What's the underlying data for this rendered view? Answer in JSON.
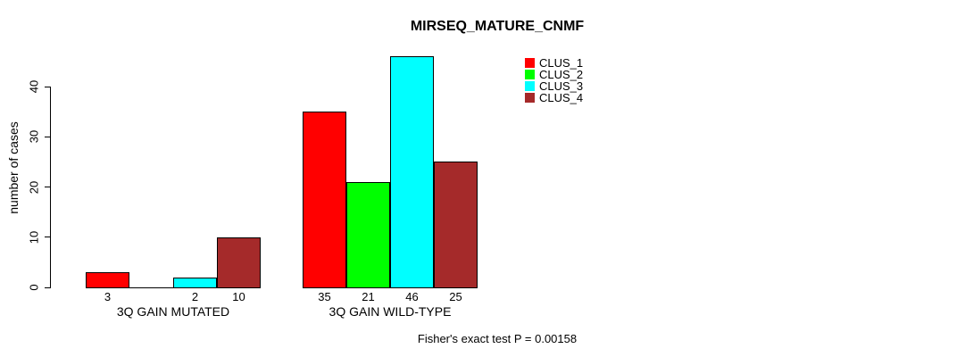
{
  "chart_data": {
    "type": "bar",
    "title": "MIRSEQ_MATURE_CNMF",
    "ylabel": "number of cases",
    "xlabel": "",
    "groups": [
      {
        "label": "3Q GAIN MUTATED",
        "values": [
          3,
          0,
          2,
          10
        ],
        "bar_labels": [
          "3",
          "",
          "2",
          "10"
        ]
      },
      {
        "label": "3Q GAIN WILD-TYPE",
        "values": [
          35,
          21,
          46,
          25
        ],
        "bar_labels": [
          "35",
          "21",
          "46",
          "25"
        ]
      }
    ],
    "series_names": [
      "CLUS_1",
      "CLUS_2",
      "CLUS_3",
      "CLUS_4"
    ],
    "series_colors": [
      "#FF0000",
      "#00FF00",
      "#00FFFF",
      "#A52A2A"
    ],
    "yticks": [
      0,
      10,
      20,
      30,
      40
    ],
    "ylim": [
      0,
      46
    ],
    "grid": false,
    "legend_position": "top-right",
    "annotation": "Fisher's exact test P = 0.00158"
  }
}
